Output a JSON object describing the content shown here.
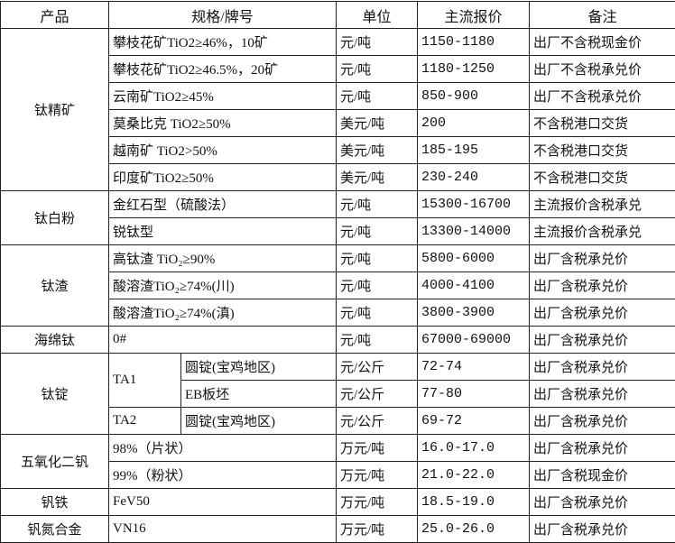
{
  "header": {
    "product": "产品",
    "spec": "规格/牌号",
    "unit": "单位",
    "price": "主流报价",
    "note": "备注"
  },
  "groups": [
    {
      "product": "钛精矿",
      "rows": [
        {
          "spec": "攀枝花矿TiO2≥46%，10矿",
          "unit": "元/吨",
          "price": "1150-1180",
          "note": "出厂不含税现金价"
        },
        {
          "spec": "攀枝花矿TiO2≥46.5%，20矿",
          "unit": "元/吨",
          "price": "1180-1250",
          "note": "出厂不含税承兑价"
        },
        {
          "spec": "云南矿TiO2≥45%",
          "unit": "元/吨",
          "price": "850-900",
          "note": "出厂不含税承兑价"
        },
        {
          "spec": "莫桑比克 TiO2≥50%",
          "unit": "美元/吨",
          "price": "200",
          "note": "不含税港口交货"
        },
        {
          "spec": "越南矿 TiO2>50%",
          "unit": "美元/吨",
          "price": "185-195",
          "note": "不含税港口交货"
        },
        {
          "spec": "印度矿TiO2≥50%",
          "unit": "美元/吨",
          "price": "230-240",
          "note": "不含税港口交货"
        }
      ]
    },
    {
      "product": "钛白粉",
      "rows": [
        {
          "spec": "金红石型（硫酸法）",
          "unit": "元/吨",
          "price": "15300-16700",
          "note": "主流报价含税承兑"
        },
        {
          "spec": "锐钛型",
          "unit": "元/吨",
          "price": "13300-14000",
          "note": "主流报价含税承兑"
        }
      ]
    },
    {
      "product": "钛渣",
      "rows": [
        {
          "spec": "高钛渣 TiO₂≥90%",
          "unit": "元/吨",
          "price": "5800-6000",
          "note": "出厂含税承兑价"
        },
        {
          "spec": "酸溶渣TiO₂≥74%(川)",
          "unit": "元/吨",
          "price": "4000-4100",
          "note": "出厂含税承兑价"
        },
        {
          "spec": "酸溶渣TiO₂≥74%(滇)",
          "unit": "元/吨",
          "price": "3800-3900",
          "note": "出厂含税承兑价"
        }
      ]
    },
    {
      "product": "海绵钛",
      "rows": [
        {
          "spec": "0#",
          "unit": "元/吨",
          "price": "67000-69000",
          "note": "出厂含税承兑价"
        }
      ]
    },
    {
      "product": "钛锭",
      "rows": [
        {
          "grade": "TA1",
          "spec": "圆锭(宝鸡地区)",
          "unit": "元/公斤",
          "price": "72-74",
          "note": "出厂含税承兑价"
        },
        {
          "spec": "EB板坯",
          "unit": "元/公斤",
          "price": "77-80",
          "note": "出厂含税承兑价"
        },
        {
          "grade": "TA2",
          "spec": "圆锭(宝鸡地区)",
          "unit": "元/公斤",
          "price": "69-72",
          "note": "出厂含税承兑价"
        }
      ]
    },
    {
      "product": "五氧化二钒",
      "rows": [
        {
          "spec": "98%（片状）",
          "unit": "万元/吨",
          "price": "16.0-17.0",
          "note": "出厂含税承兑价"
        },
        {
          "spec": "99%（粉状）",
          "unit": "万元/吨",
          "price": "21.0-22.0",
          "note": "出厂含税现金价"
        }
      ]
    },
    {
      "product": "钒铁",
      "rows": [
        {
          "spec": "FeV50",
          "unit": "万元/吨",
          "price": "18.5-19.0",
          "note": "出厂含税承兑价"
        }
      ]
    },
    {
      "product": "钒氮合金",
      "rows": [
        {
          "spec": "VN16",
          "unit": "万元/吨",
          "price": "25.0-26.0",
          "note": "出厂含税承兑价"
        }
      ]
    }
  ]
}
